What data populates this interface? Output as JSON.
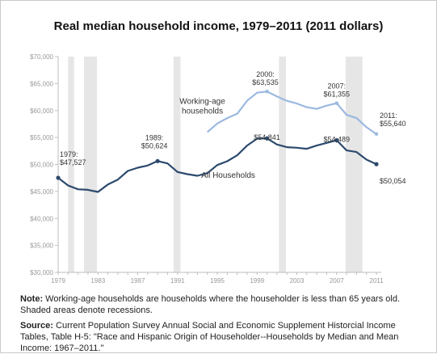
{
  "chart_data": {
    "type": "line",
    "title": "Real median household income, 1979–2011 (2011 dollars)",
    "ylim": [
      30000,
      70000
    ],
    "xlim": [
      1979,
      2011
    ],
    "y_ticks": [
      30000,
      35000,
      40000,
      45000,
      50000,
      55000,
      60000,
      65000,
      70000
    ],
    "y_tick_labels": [
      "$30,000",
      "$35,000",
      "$40,000",
      "$45,000",
      "$50,000",
      "$55,000",
      "$60,000",
      "$65,000",
      "$70,000"
    ],
    "x_ticks": [
      1979,
      1983,
      1987,
      1991,
      1995,
      1999,
      2003,
      2007,
      2011
    ],
    "x_tick_labels": [
      "1979",
      "1983",
      "1987",
      "1991",
      "1995",
      "1999",
      "2003",
      "2007",
      "2011"
    ],
    "recessions": [
      [
        1980.0,
        1980.6
      ],
      [
        1981.6,
        1982.9
      ],
      [
        1990.6,
        1991.3
      ],
      [
        2001.2,
        2001.9
      ],
      [
        2007.9,
        2009.6
      ]
    ],
    "series": [
      {
        "name": "Working-age households",
        "color": "#9bb9e0",
        "x": [
          1994,
          1995,
          1996,
          1997,
          1998,
          1999,
          2000,
          2001,
          2002,
          2003,
          2004,
          2005,
          2006,
          2007,
          2008,
          2009,
          2010,
          2011
        ],
        "values": [
          56000,
          57600,
          58600,
          59400,
          61800,
          63300,
          63535,
          62600,
          61800,
          61300,
          60600,
          60300,
          60900,
          61355,
          59200,
          58600,
          56900,
          55640
        ]
      },
      {
        "name": "All Households",
        "color": "#2c4a6e",
        "x": [
          1979,
          1980,
          1981,
          1982,
          1983,
          1984,
          1985,
          1986,
          1987,
          1988,
          1989,
          1990,
          1991,
          1992,
          1993,
          1994,
          1995,
          1996,
          1997,
          1998,
          1999,
          2000,
          2001,
          2002,
          2003,
          2004,
          2005,
          2006,
          2007,
          2008,
          2009,
          2010,
          2011
        ],
        "values": [
          47527,
          46100,
          45400,
          45300,
          44900,
          46300,
          47200,
          48800,
          49400,
          49800,
          50624,
          50200,
          48600,
          48200,
          47900,
          48400,
          49900,
          50600,
          51700,
          53500,
          54800,
          54841,
          53700,
          53200,
          53100,
          52900,
          53500,
          54000,
          54489,
          52600,
          52300,
          50900,
          50054
        ]
      }
    ],
    "annotations": [
      {
        "year": "1979:",
        "value": "$47,527",
        "series": 1,
        "x": 1979
      },
      {
        "year": "1989:",
        "value": "$50,624",
        "series": 1,
        "x": 1989
      },
      {
        "year": "",
        "value": "$54,841",
        "series": 1,
        "x": 2000
      },
      {
        "year": "",
        "value": "$54,489",
        "series": 1,
        "x": 2007
      },
      {
        "year": "",
        "value": "$50,054",
        "series": 1,
        "x": 2011
      },
      {
        "year": "2000:",
        "value": "$63,535",
        "series": 0,
        "x": 2000
      },
      {
        "year": "2007:",
        "value": "$61,355",
        "series": 0,
        "x": 2007
      },
      {
        "year": "2011:",
        "value": "$55,640",
        "series": 0,
        "x": 2011
      }
    ],
    "series_labels": {
      "working_age_line1": "Working-age",
      "working_age_line2": "households",
      "all_households": "All Households"
    }
  },
  "notes": {
    "note_label": "Note:",
    "note_text": " Working-age households are households where the householder is less than 65 years old.  Shaded areas denote recessions.",
    "source_label": "Source:",
    "source_text": " Current Population Survey Annual Social and Economic Supplement Historcial Income Tables, Table H-5: \"Race and Hispanic Origin of Householder--Households by Median and Mean Income: 1967–2011.\""
  }
}
